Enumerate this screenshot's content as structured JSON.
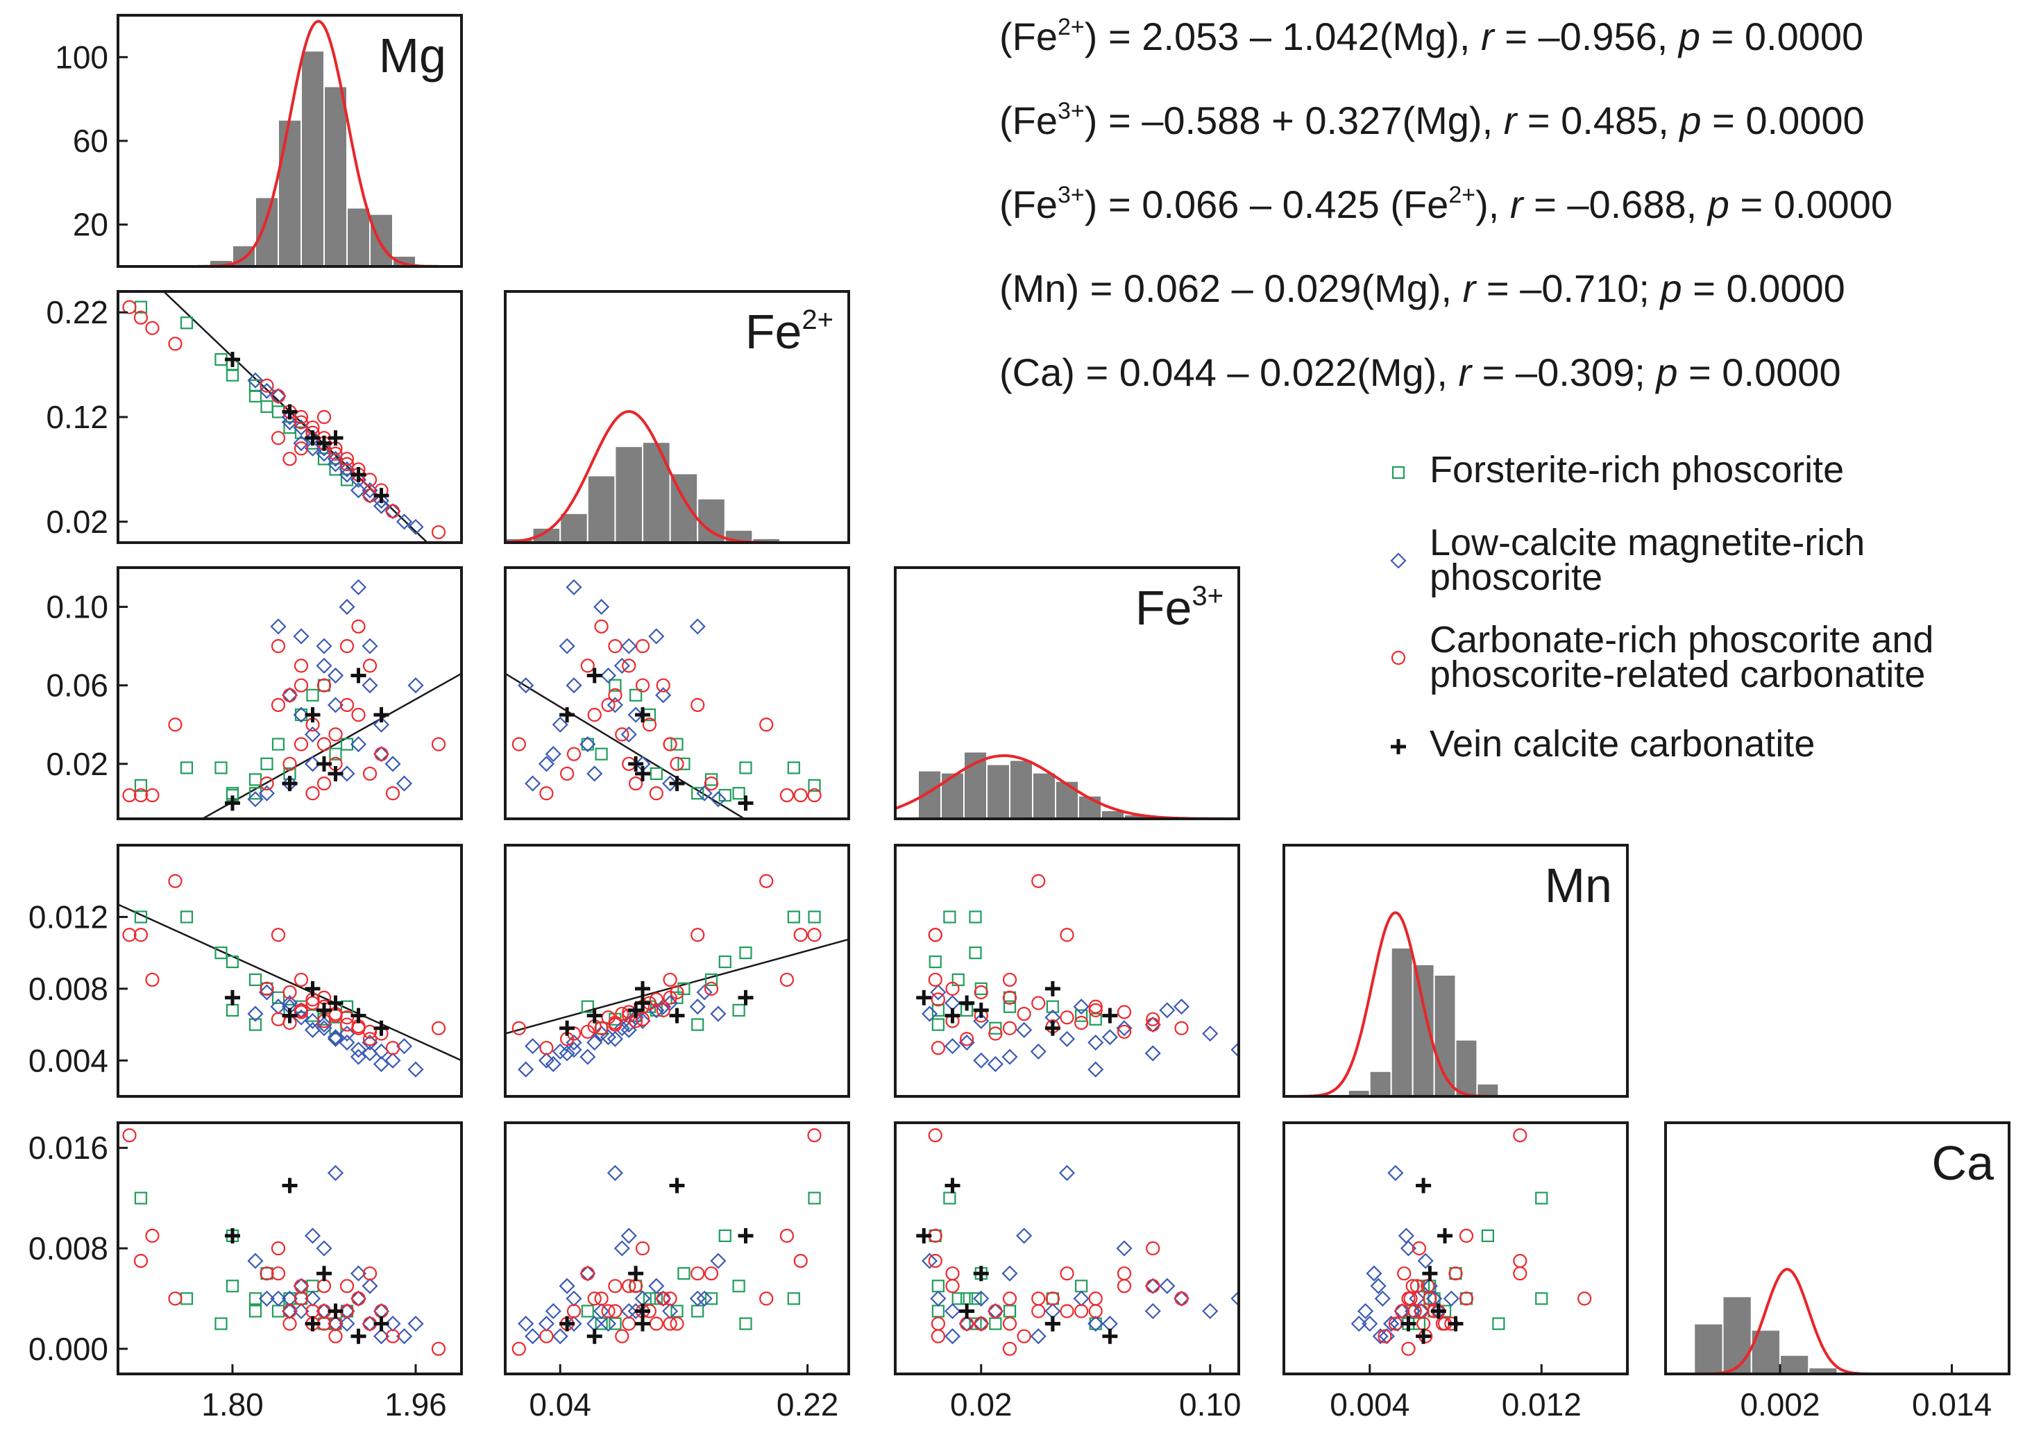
{
  "chart_data": {
    "type": "scatter",
    "title": "",
    "layout": "scatter-plot matrix (lower triangle) with histograms and fitted normal curves on diagonal",
    "variables": [
      {
        "name": "Mg",
        "label": "Mg",
        "sup": "",
        "xlim": [
          1.7,
          2.0
        ],
        "xticks": [
          "1.80",
          "1.96"
        ],
        "xtick_values": [
          1.8,
          1.96
        ],
        "mean": 1.875,
        "sd": 0.025
      },
      {
        "name": "Fe2+",
        "label": "Fe",
        "sup": "2+",
        "xlim": [
          0.0,
          0.25
        ],
        "xticks": [
          "0.04",
          "0.22"
        ],
        "xtick_values": [
          0.04,
          0.22
        ],
        "mean": 0.09,
        "sd": 0.027
      },
      {
        "name": "Fe3+",
        "label": "Fe",
        "sup": "3+",
        "xlim": [
          -0.01,
          0.11
        ],
        "xticks": [
          "0.02",
          "0.10"
        ],
        "xtick_values": [
          0.02,
          0.1
        ],
        "mean": 0.028,
        "sd": 0.02
      },
      {
        "name": "Mn",
        "label": "Mn",
        "sup": "",
        "xlim": [
          0.0,
          0.016
        ],
        "xticks": [
          "0.004",
          "0.012"
        ],
        "xtick_values": [
          0.004,
          0.012
        ],
        "mean": 0.0052,
        "sd": 0.0011
      },
      {
        "name": "Ca",
        "label": "Ca",
        "sup": "",
        "xlim": [
          -0.006,
          0.018
        ],
        "xticks": [
          "0.002",
          "0.014"
        ],
        "xtick_values": [
          0.002,
          0.014
        ],
        "mean": 0.0025,
        "sd": 0.0015
      }
    ],
    "diag_ylim": [
      0,
      120
    ],
    "diag_yticks": [
      "20",
      "60",
      "100"
    ],
    "diag_ytick_values": [
      20,
      60,
      100
    ],
    "row_yticks": [
      {
        "var": "Fe2+",
        "labels": [
          "0.22",
          "0.12",
          "0.02"
        ],
        "values": [
          0.22,
          0.12,
          0.02
        ]
      },
      {
        "var": "Fe3+",
        "labels": [
          "0.10",
          "0.06",
          "0.02"
        ],
        "values": [
          0.1,
          0.06,
          0.02
        ]
      },
      {
        "var": "Mn",
        "labels": [
          "0.012",
          "0.008",
          "0.004"
        ],
        "values": [
          0.012,
          0.008,
          0.004
        ]
      },
      {
        "var": "Ca",
        "labels": [
          "0.016",
          "0.008",
          "0.000"
        ],
        "values": [
          0.016,
          0.008,
          0.0
        ]
      }
    ],
    "row_ylim": [
      {
        "var": "Fe2+",
        "ylim": [
          0.0,
          0.24
        ]
      },
      {
        "var": "Fe3+",
        "ylim": [
          -0.008,
          0.12
        ]
      },
      {
        "var": "Mn",
        "ylim": [
          0.002,
          0.016
        ]
      },
      {
        "var": "Ca",
        "ylim": [
          -0.002,
          0.018
        ]
      }
    ],
    "histograms": [
      {
        "var": "Mg",
        "bin_edges": [
          1.7,
          1.72,
          1.74,
          1.76,
          1.78,
          1.8,
          1.82,
          1.84,
          1.86,
          1.88,
          1.9,
          1.92,
          1.94,
          1.96,
          1.98
        ],
        "counts": [
          1,
          1,
          1,
          0,
          3,
          10,
          33,
          70,
          103,
          86,
          28,
          25,
          5,
          1
        ]
      },
      {
        "var": "Fe2+",
        "bin_edges": [
          0.0,
          0.02,
          0.04,
          0.06,
          0.08,
          0.1,
          0.12,
          0.14,
          0.16,
          0.18,
          0.2,
          0.22
        ],
        "counts": [
          2,
          7,
          14,
          32,
          46,
          48,
          33,
          21,
          6,
          2,
          1
        ]
      },
      {
        "var": "Fe3+",
        "bin_edges": [
          -0.002,
          0.006,
          0.014,
          0.022,
          0.03,
          0.038,
          0.046,
          0.054,
          0.062,
          0.07,
          0.078,
          0.086,
          0.094
        ],
        "counts": [
          23,
          22,
          32,
          26,
          28,
          22,
          18,
          11,
          4,
          2,
          1,
          0
        ]
      },
      {
        "var": "Mn",
        "bin_edges": [
          0.002,
          0.003,
          0.004,
          0.005,
          0.006,
          0.007,
          0.008,
          0.009,
          0.01,
          0.011,
          0.012
        ],
        "counts": [
          1,
          3,
          12,
          71,
          63,
          58,
          27,
          6,
          1,
          0
        ]
      },
      {
        "var": "Ca",
        "bin_edges": [
          -0.004,
          -0.002,
          0.0,
          0.002,
          0.004,
          0.006,
          0.008,
          0.01,
          0.012,
          0.014
        ],
        "counts": [
          24,
          37,
          21,
          9,
          3,
          0,
          0,
          0,
          0
        ]
      }
    ],
    "fit_lines": [
      {
        "x": "Mg",
        "y": "Fe2+",
        "intercept": 2.053,
        "slope": -1.042
      },
      {
        "x": "Mg",
        "y": "Fe3+",
        "intercept": -0.588,
        "slope": 0.327
      },
      {
        "x": "Fe2+",
        "y": "Fe3+",
        "intercept": 0.066,
        "slope": -0.425
      },
      {
        "x": "Mg",
        "y": "Mn",
        "intercept": 0.062,
        "slope": -0.029
      },
      {
        "x": "Fe2+",
        "y": "Mn",
        "intercept": 0.0055,
        "slope": 0.021
      }
    ],
    "series": [
      {
        "name": "Forsterite-rich phoscorite",
        "marker": "square",
        "color": "#1f9e5b",
        "points": [
          [
            1.72,
            0.225,
            0.009,
            0.012,
            0.012
          ],
          [
            1.76,
            0.21,
            0.018,
            0.012,
            0.004
          ],
          [
            1.79,
            0.175,
            0.018,
            0.01,
            0.002
          ],
          [
            1.8,
            0.16,
            0.004,
            0.0095,
            0.009
          ],
          [
            1.82,
            0.15,
            0.012,
            0.0085,
            0.004
          ],
          [
            1.83,
            0.13,
            0.02,
            0.008,
            0.006
          ],
          [
            1.84,
            0.125,
            0.03,
            0.0075,
            0.003
          ],
          [
            1.86,
            0.105,
            0.045,
            0.007,
            0.004
          ],
          [
            1.87,
            0.095,
            0.055,
            0.0065,
            0.005
          ],
          [
            1.88,
            0.08,
            0.06,
            0.0063,
            0.002
          ],
          [
            1.9,
            0.06,
            0.03,
            0.007,
            0.003
          ],
          [
            1.8,
            0.17,
            0.005,
            0.0068,
            0.005
          ],
          [
            1.82,
            0.14,
            0.005,
            0.006,
            0.003
          ],
          [
            1.85,
            0.11,
            0.015,
            0.0068,
            0.004
          ],
          [
            1.89,
            0.07,
            0.025,
            0.0058,
            0.002
          ]
        ]
      },
      {
        "name": "Low-calcite magnetite-rich phoscorite",
        "marker": "diamond",
        "color": "#3a5ab5",
        "points": [
          [
            1.84,
            0.14,
            0.09,
            0.007,
            0.004
          ],
          [
            1.86,
            0.11,
            0.085,
            0.0068,
            0.005
          ],
          [
            1.88,
            0.09,
            0.08,
            0.006,
            0.003
          ],
          [
            1.9,
            0.07,
            0.1,
            0.0055,
            0.003
          ],
          [
            1.92,
            0.05,
            0.06,
            0.005,
            0.002
          ],
          [
            1.93,
            0.04,
            0.04,
            0.0045,
            0.001
          ],
          [
            1.94,
            0.03,
            0.02,
            0.004,
            0.002
          ],
          [
            1.95,
            0.02,
            0.01,
            0.0048,
            0.001
          ],
          [
            1.91,
            0.06,
            0.03,
            0.0042,
            0.006
          ],
          [
            1.89,
            0.08,
            0.05,
            0.0052,
            0.014
          ],
          [
            1.87,
            0.1,
            0.02,
            0.0062,
            0.004
          ],
          [
            1.85,
            0.12,
            0.01,
            0.0072,
            0.003
          ],
          [
            1.83,
            0.145,
            0.005,
            0.0078,
            0.004
          ],
          [
            1.82,
            0.155,
            0.002,
            0.0066,
            0.007
          ],
          [
            1.96,
            0.015,
            0.06,
            0.0035,
            0.002
          ],
          [
            1.91,
            0.05,
            0.11,
            0.0046,
            0.004
          ],
          [
            1.88,
            0.085,
            0.07,
            0.0058,
            0.008
          ],
          [
            1.86,
            0.095,
            0.045,
            0.0064,
            0.003
          ],
          [
            1.9,
            0.065,
            0.015,
            0.005,
            0.002
          ],
          [
            1.93,
            0.035,
            0.025,
            0.0038,
            0.003
          ],
          [
            1.92,
            0.045,
            0.08,
            0.0044,
            0.005
          ],
          [
            1.87,
            0.09,
            0.035,
            0.0057,
            0.009
          ],
          [
            1.85,
            0.115,
            0.055,
            0.007,
            0.004
          ],
          [
            1.89,
            0.075,
            0.065,
            0.0053,
            0.002
          ]
        ]
      },
      {
        "name": "Carbonate-rich phoscorite and phoscorite-related carbonatite",
        "marker": "circle",
        "color": "#ee2a2f",
        "points": [
          [
            1.71,
            0.225,
            0.004,
            0.011,
            0.017
          ],
          [
            1.72,
            0.215,
            0.004,
            0.011,
            0.007
          ],
          [
            1.73,
            0.205,
            0.004,
            0.0085,
            0.009
          ],
          [
            1.75,
            0.19,
            0.04,
            0.014,
            0.004
          ],
          [
            1.98,
            0.01,
            0.03,
            0.0058,
            0.0
          ],
          [
            1.84,
            0.14,
            0.05,
            0.011,
            0.006
          ],
          [
            1.86,
            0.12,
            0.03,
            0.0085,
            0.004
          ],
          [
            1.88,
            0.1,
            0.06,
            0.007,
            0.003
          ],
          [
            1.89,
            0.09,
            0.02,
            0.0065,
            0.002
          ],
          [
            1.9,
            0.08,
            0.08,
            0.006,
            0.005
          ],
          [
            1.91,
            0.07,
            0.09,
            0.0058,
            0.004
          ],
          [
            1.92,
            0.06,
            0.07,
            0.0056,
            0.006
          ],
          [
            1.87,
            0.105,
            0.04,
            0.0072,
            0.003
          ],
          [
            1.85,
            0.125,
            0.02,
            0.0078,
            0.002
          ],
          [
            1.86,
            0.115,
            0.06,
            0.0068,
            0.004
          ],
          [
            1.88,
            0.095,
            0.01,
            0.0062,
            0.005
          ],
          [
            1.9,
            0.075,
            0.05,
            0.0064,
            0.003
          ],
          [
            1.89,
            0.085,
            0.035,
            0.0066,
            0.001
          ],
          [
            1.87,
            0.11,
            0.005,
            0.0074,
            0.002
          ],
          [
            1.91,
            0.065,
            0.045,
            0.0059,
            0.004
          ],
          [
            1.93,
            0.05,
            0.025,
            0.0055,
            0.003
          ],
          [
            1.83,
            0.15,
            0.01,
            0.008,
            0.006
          ],
          [
            1.84,
            0.1,
            0.08,
            0.0063,
            0.008
          ],
          [
            1.92,
            0.045,
            0.015,
            0.0052,
            0.002
          ],
          [
            1.86,
            0.09,
            0.07,
            0.0067,
            0.005
          ],
          [
            1.88,
            0.12,
            0.03,
            0.0075,
            0.002
          ],
          [
            1.94,
            0.03,
            0.005,
            0.0047,
            0.001
          ],
          [
            1.85,
            0.08,
            0.055,
            0.0061,
            0.003
          ]
        ]
      },
      {
        "name": "Vein calcite carbonatite",
        "marker": "cross",
        "color": "#111111",
        "points": [
          [
            1.8,
            0.175,
            0.0,
            0.0075,
            0.009
          ],
          [
            1.85,
            0.125,
            0.01,
            0.0065,
            0.013
          ],
          [
            1.87,
            0.1,
            0.045,
            0.008,
            0.002
          ],
          [
            1.88,
            0.095,
            0.02,
            0.0068,
            0.006
          ],
          [
            1.89,
            0.1,
            0.015,
            0.0072,
            0.003
          ],
          [
            1.91,
            0.065,
            0.065,
            0.0065,
            0.001
          ],
          [
            1.93,
            0.045,
            0.045,
            0.0058,
            0.002
          ]
        ]
      }
    ]
  },
  "equations": [
    {
      "parts": [
        [
          "n",
          "(Fe"
        ],
        [
          "s",
          "2+"
        ],
        [
          "n",
          ") = 2.053 – 1.042(Mg), "
        ],
        [
          "i",
          "r"
        ],
        [
          "n",
          " = –0.956, "
        ],
        [
          "i",
          "p"
        ],
        [
          "n",
          " = 0.0000"
        ]
      ]
    },
    {
      "parts": [
        [
          "n",
          "(Fe"
        ],
        [
          "s",
          "3+"
        ],
        [
          "n",
          ") = –0.588 + 0.327(Mg), "
        ],
        [
          "i",
          "r"
        ],
        [
          "n",
          " = 0.485, "
        ],
        [
          "i",
          "p"
        ],
        [
          "n",
          " = 0.0000"
        ]
      ]
    },
    {
      "parts": [
        [
          "n",
          "(Fe"
        ],
        [
          "s",
          "3+"
        ],
        [
          "n",
          ") = 0.066 – 0.425 (Fe"
        ],
        [
          "s",
          "2+"
        ],
        [
          "n",
          "), "
        ],
        [
          "i",
          "r"
        ],
        [
          "n",
          " = –0.688, "
        ],
        [
          "i",
          "p"
        ],
        [
          "n",
          " = 0.0000"
        ]
      ]
    },
    {
      "parts": [
        [
          "n",
          "(Mn) = 0.062 – 0.029(Mg), "
        ],
        [
          "i",
          "r"
        ],
        [
          "n",
          " = –0.710; "
        ],
        [
          "i",
          "p"
        ],
        [
          "n",
          " = 0.0000"
        ]
      ]
    },
    {
      "parts": [
        [
          "n",
          "(Ca) = 0.044 – 0.022(Mg),  "
        ],
        [
          "i",
          "r"
        ],
        [
          "n",
          " = –0.309; "
        ],
        [
          "i",
          "p"
        ],
        [
          "n",
          " = 0.0000"
        ]
      ]
    }
  ],
  "legend": [
    {
      "marker": "square",
      "lines": [
        "Forsterite-rich phoscorite"
      ]
    },
    {
      "marker": "diamond",
      "lines": [
        "Low-calcite magnetite-rich",
        "phoscorite"
      ]
    },
    {
      "marker": "circle",
      "lines": [
        "Carbonate-rich phoscorite and",
        "phoscorite-related carbonatite"
      ]
    },
    {
      "marker": "cross",
      "lines": [
        "Vein calcite carbonatite"
      ]
    }
  ],
  "colors": {
    "normal_curve": "#e8262a",
    "histogram": "#7f7f7f",
    "circle": "#ee2a2f",
    "diamond": "#3a5ab5",
    "square": "#1f9e5b",
    "cross": "#111111"
  }
}
